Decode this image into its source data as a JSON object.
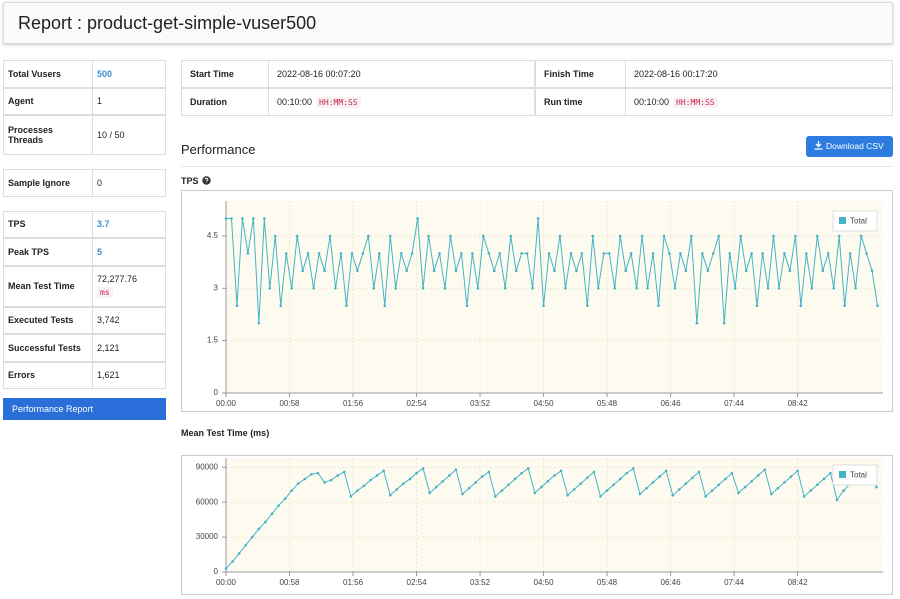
{
  "header": {
    "title": "Report : product-get-simple-vuser500"
  },
  "summary": {
    "groups": [
      [
        {
          "label": "Total Vusers",
          "value": "500",
          "color": "#3d8fd1"
        },
        {
          "label": "Agent",
          "value": "1"
        },
        {
          "label": "Processes Threads",
          "value": "10 / 50"
        }
      ],
      [
        {
          "label": "Sample Ignore",
          "value": "0"
        }
      ],
      [
        {
          "label": "TPS",
          "value": "3.7",
          "color": "#3d8fd1"
        },
        {
          "label": "Peak TPS",
          "value": "5",
          "color": "#3d8fd1"
        },
        {
          "label": "Mean Test Time",
          "value": "72,277.76",
          "unit": "ms"
        },
        {
          "label": "Executed Tests",
          "value": "3,742"
        },
        {
          "label": "Successful Tests",
          "value": "2,121"
        },
        {
          "label": "Errors",
          "value": "1,621"
        }
      ]
    ]
  },
  "nav": {
    "button": "Performance Report"
  },
  "info": {
    "rows": [
      [
        {
          "label": "Start Time",
          "value": "2022-08-16 00:07:20"
        },
        {
          "label": "Finish Time",
          "value": "2022-08-16 00:17:20"
        }
      ],
      [
        {
          "label": "Duration",
          "value": "00:10:00",
          "unit": "HH:MM:SS"
        },
        {
          "label": "Run time",
          "value": "00:10:00",
          "unit": "HH:MM:SS"
        }
      ]
    ]
  },
  "section": {
    "title": "Performance",
    "download": "Download CSV"
  },
  "chart_data": [
    {
      "type": "line",
      "title": "TPS",
      "legend": "top-right",
      "grid": true,
      "xlim": [
        0,
        600
      ],
      "xticks": [
        {
          "value": 0,
          "label": "00:00"
        },
        {
          "value": 58,
          "label": "00:58"
        },
        {
          "value": 116,
          "label": "01:56"
        },
        {
          "value": 174,
          "label": "02:54"
        },
        {
          "value": 232,
          "label": "03:52"
        },
        {
          "value": 290,
          "label": "04:50"
        },
        {
          "value": 348,
          "label": "05:48"
        },
        {
          "value": 406,
          "label": "06:46"
        },
        {
          "value": 464,
          "label": "07:44"
        },
        {
          "value": 522,
          "label": "08:42"
        }
      ],
      "ylim": [
        0,
        5.5
      ],
      "yticks": [
        0,
        1.5,
        3,
        4.5
      ],
      "x": [
        0,
        5,
        10,
        15,
        20,
        25,
        30,
        35,
        40,
        45,
        50,
        55,
        60,
        65,
        70,
        75,
        80,
        85,
        90,
        95,
        100,
        105,
        110,
        115,
        120,
        125,
        130,
        135,
        140,
        145,
        150,
        155,
        160,
        165,
        170,
        175,
        180,
        185,
        190,
        195,
        200,
        205,
        210,
        215,
        220,
        225,
        230,
        235,
        240,
        245,
        250,
        255,
        260,
        265,
        270,
        275,
        280,
        285,
        290,
        295,
        300,
        305,
        310,
        315,
        320,
        325,
        330,
        335,
        340,
        345,
        350,
        355,
        360,
        365,
        370,
        375,
        380,
        385,
        390,
        395,
        400,
        405,
        410,
        415,
        420,
        425,
        430,
        435,
        440,
        445,
        450,
        455,
        460,
        465,
        470,
        475,
        480,
        485,
        490,
        495,
        500,
        505,
        510,
        515,
        520,
        525,
        530,
        535,
        540,
        545,
        550,
        555,
        560,
        565,
        570,
        575,
        580,
        585,
        590,
        595
      ],
      "series": [
        {
          "name": "Total",
          "color": "#45b3c6",
          "values": [
            5,
            5,
            2.5,
            5,
            4,
            5,
            2,
            5,
            3,
            4.5,
            2.5,
            4,
            3,
            4.5,
            3.5,
            4,
            3,
            4,
            3.5,
            4.5,
            3,
            4,
            2.5,
            4,
            3.5,
            4,
            4.5,
            3,
            4,
            2.5,
            4.5,
            3,
            4,
            3.5,
            4,
            5,
            3,
            4.5,
            3.5,
            4,
            3,
            4.5,
            3.5,
            4,
            2.5,
            4,
            3,
            4.5,
            4,
            3.5,
            4,
            3,
            4.5,
            3.5,
            4,
            4,
            3,
            5,
            2.5,
            4,
            3.5,
            4.5,
            3,
            4,
            3.5,
            4,
            2.5,
            4.5,
            3,
            4,
            4,
            3,
            4.5,
            3.5,
            4,
            3,
            4.5,
            3,
            4,
            2.5,
            4.5,
            4,
            3,
            4,
            3.5,
            4.5,
            2,
            4,
            3.5,
            4,
            4.5,
            2,
            4,
            3,
            4.5,
            3.5,
            4,
            2.5,
            4,
            3,
            4.5,
            3,
            4,
            3.5,
            4.5,
            2.5,
            4,
            3,
            4.5,
            3.5,
            4,
            3,
            4.5,
            2.5,
            4,
            3,
            4.5,
            4,
            3.5,
            2.5
          ]
        }
      ]
    },
    {
      "type": "line",
      "title": "Mean Test Time (ms)",
      "legend": "top-right",
      "grid": true,
      "xlim": [
        0,
        600
      ],
      "xticks": [
        {
          "value": 0,
          "label": "00:00"
        },
        {
          "value": 58,
          "label": "00:58"
        },
        {
          "value": 116,
          "label": "01:56"
        },
        {
          "value": 174,
          "label": "02:54"
        },
        {
          "value": 232,
          "label": "03:52"
        },
        {
          "value": 290,
          "label": "04:50"
        },
        {
          "value": 348,
          "label": "05:48"
        },
        {
          "value": 406,
          "label": "06:46"
        },
        {
          "value": 464,
          "label": "07:44"
        },
        {
          "value": 522,
          "label": "08:42"
        }
      ],
      "ylim": [
        0,
        98000
      ],
      "yticks": [
        0,
        30000,
        60000,
        90000
      ],
      "x": [
        0,
        6,
        12,
        18,
        24,
        30,
        36,
        42,
        48,
        54,
        60,
        66,
        72,
        78,
        84,
        90,
        96,
        102,
        108,
        114,
        120,
        126,
        132,
        138,
        144,
        150,
        156,
        162,
        168,
        174,
        180,
        186,
        192,
        198,
        204,
        210,
        216,
        222,
        228,
        234,
        240,
        246,
        252,
        258,
        264,
        270,
        276,
        282,
        288,
        294,
        300,
        306,
        312,
        318,
        324,
        330,
        336,
        342,
        348,
        354,
        360,
        366,
        372,
        378,
        384,
        390,
        396,
        402,
        408,
        414,
        420,
        426,
        432,
        438,
        444,
        450,
        456,
        462,
        468,
        474,
        480,
        486,
        492,
        498,
        504,
        510,
        516,
        522,
        528,
        534,
        540,
        546,
        552,
        558,
        564,
        570,
        576,
        582,
        588,
        594
      ],
      "series": [
        {
          "name": "Total",
          "color": "#45b3c6",
          "values": [
            3000,
            9000,
            16000,
            23000,
            30000,
            37000,
            43000,
            50000,
            57000,
            63000,
            70000,
            76000,
            80000,
            84000,
            85000,
            77000,
            79000,
            83000,
            86000,
            65000,
            70000,
            74000,
            79000,
            83000,
            87000,
            66000,
            71000,
            76000,
            80000,
            85000,
            89000,
            68000,
            73000,
            78000,
            83000,
            88000,
            67000,
            72000,
            77000,
            82000,
            86000,
            65000,
            70000,
            75000,
            80000,
            85000,
            89000,
            68000,
            73000,
            78000,
            83000,
            87000,
            66000,
            71000,
            76000,
            81000,
            86000,
            65000,
            70000,
            75000,
            80000,
            85000,
            89000,
            67000,
            72000,
            77000,
            82000,
            87000,
            66000,
            71000,
            76000,
            81000,
            86000,
            65000,
            70000,
            75000,
            80000,
            85000,
            68000,
            73000,
            78000,
            83000,
            88000,
            67000,
            72000,
            77000,
            82000,
            87000,
            65000,
            70000,
            75000,
            80000,
            85000,
            62000,
            70000,
            76000,
            81000,
            86000,
            88000,
            73000
          ]
        }
      ]
    }
  ]
}
